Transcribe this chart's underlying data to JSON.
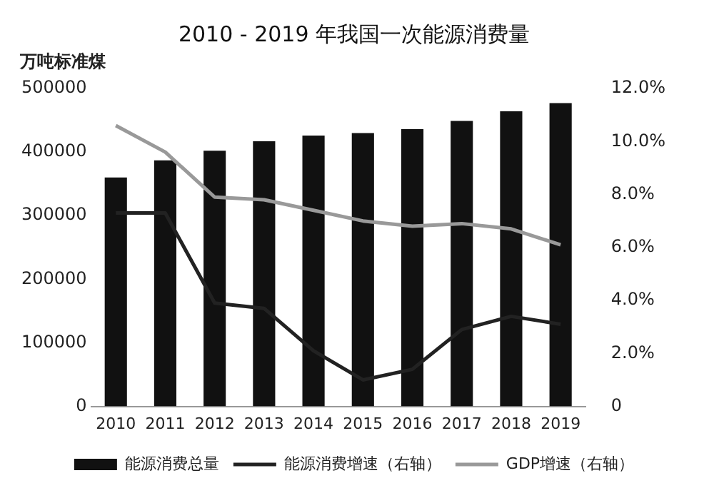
{
  "chart_data": {
    "type": "bar",
    "title": "2010 - 2019 年我国一次能源消费量",
    "ylabel": "万吨标准煤",
    "categories": [
      "2010",
      "2011",
      "2012",
      "2013",
      "2014",
      "2015",
      "2016",
      "2017",
      "2018",
      "2019"
    ],
    "series": [
      {
        "name": "能源消费总量",
        "color": "#111111",
        "values": [
          360000,
          387000,
          402000,
          417000,
          426000,
          430000,
          436000,
          449000,
          464000,
          477000
        ]
      },
      {
        "name": "能源消费增速（右轴）",
        "type": "line",
        "axis": "y2",
        "color": "#222222",
        "values": [
          7.3,
          7.3,
          3.9,
          3.7,
          2.1,
          1.0,
          1.4,
          2.9,
          3.4,
          3.1
        ]
      },
      {
        "name": "GDP增速（右轴）",
        "type": "line",
        "axis": "y2",
        "color": "#999999",
        "values": [
          10.6,
          9.6,
          7.9,
          7.8,
          7.4,
          7.0,
          6.8,
          6.9,
          6.7,
          6.1
        ]
      }
    ],
    "ylim": [
      0,
      500000
    ],
    "yticks": [
      0,
      100000,
      200000,
      300000,
      400000,
      500000
    ],
    "y2lim": [
      0,
      12
    ],
    "y2ticks": [
      {
        "value": 0,
        "label": "0"
      },
      {
        "value": 2,
        "label": "2.0%"
      },
      {
        "value": 4,
        "label": "4.0%"
      },
      {
        "value": 6,
        "label": "6.0%"
      },
      {
        "value": 8,
        "label": "8.0%"
      },
      {
        "value": 10,
        "label": "10.0%"
      },
      {
        "value": 12,
        "label": "12.0%"
      }
    ],
    "grid": false,
    "legend": "bottom",
    "marker": "none",
    "line_style": "solid"
  }
}
